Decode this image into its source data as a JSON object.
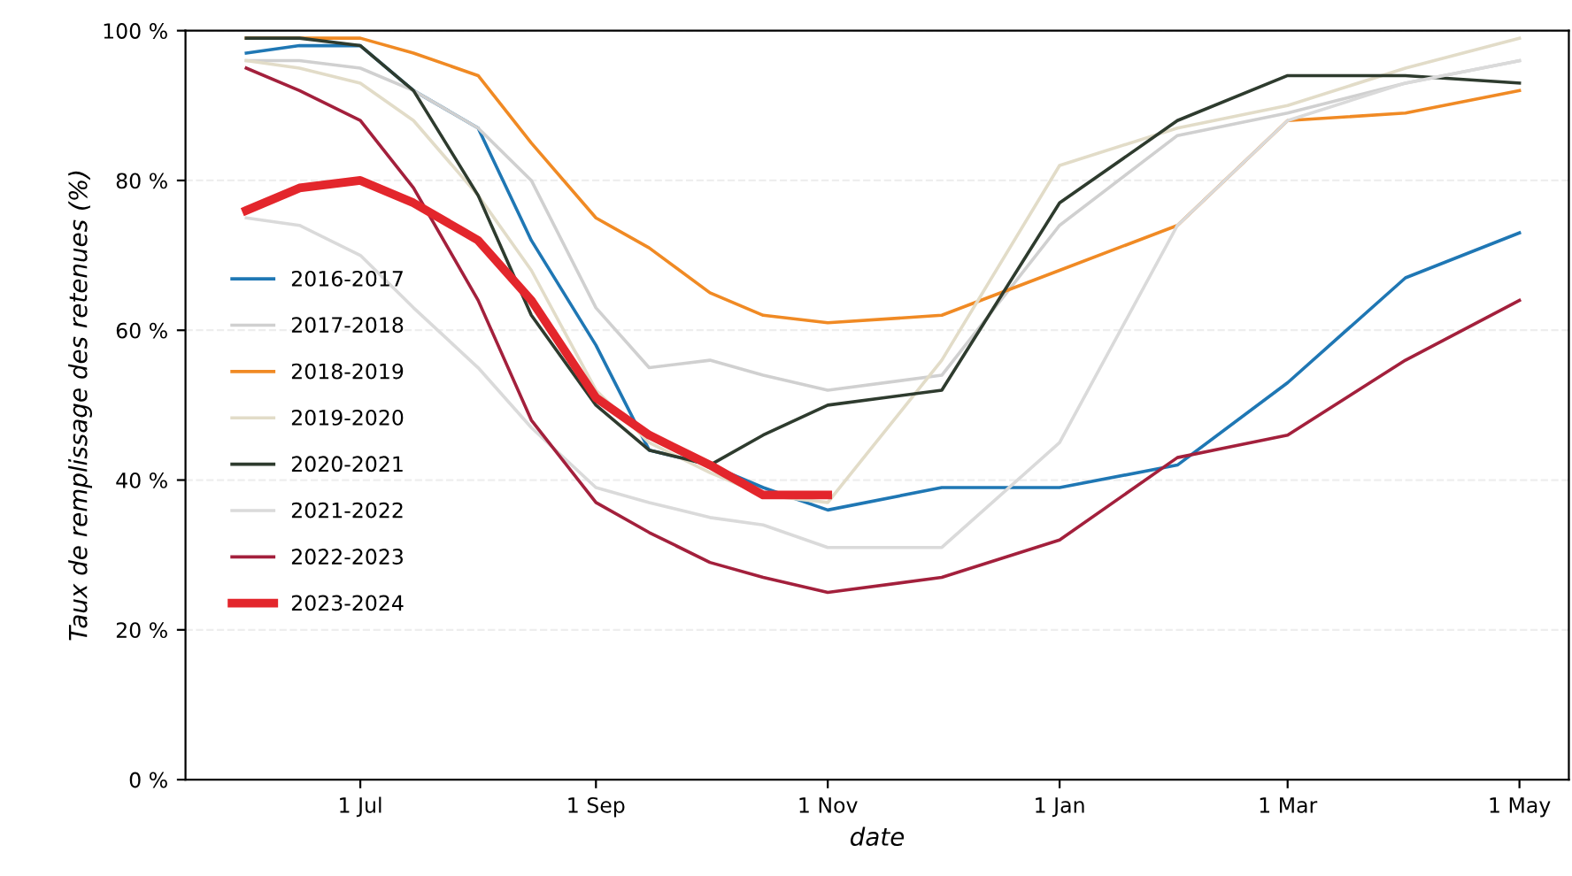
{
  "chart_data": {
    "type": "line",
    "xlabel": "date",
    "ylabel": "Taux de remplissage des retenues (%)",
    "x": [
      "2023-06-01",
      "2023-06-15",
      "2023-07-01",
      "2023-07-15",
      "2023-08-01",
      "2023-08-15",
      "2023-09-01",
      "2023-09-15",
      "2023-10-01",
      "2023-10-15",
      "2023-11-01",
      "2023-12-01",
      "2024-01-01",
      "2024-02-01",
      "2024-03-01",
      "2024-04-01",
      "2024-05-01"
    ],
    "xlim": [
      "2023-05-16",
      "2024-05-14"
    ],
    "xticks": [
      {
        "value": "2023-07-01",
        "label": "1 Jul"
      },
      {
        "value": "2023-09-01",
        "label": "1 Sep"
      },
      {
        "value": "2023-11-01",
        "label": "1 Nov"
      },
      {
        "value": "2024-01-01",
        "label": "1 Jan"
      },
      {
        "value": "2024-03-01",
        "label": "1 Mar"
      },
      {
        "value": "2024-05-01",
        "label": "1 May"
      }
    ],
    "ylim": [
      0,
      100
    ],
    "yticks": [
      {
        "value": 0,
        "label": "0 %"
      },
      {
        "value": 20,
        "label": "20 %"
      },
      {
        "value": 40,
        "label": "40 %"
      },
      {
        "value": 60,
        "label": "60 %"
      },
      {
        "value": 80,
        "label": "80 %"
      },
      {
        "value": 100,
        "label": "100 %"
      }
    ],
    "grid": "y",
    "legend": "left",
    "line_style": "solid",
    "series": [
      {
        "name": "2016-2017",
        "color": "#1f77b4",
        "values": [
          97,
          98,
          98,
          92,
          87,
          72,
          58,
          44,
          42,
          39,
          36,
          39,
          39,
          42,
          53,
          67,
          73
        ]
      },
      {
        "name": "2017-2018",
        "color": "#d0d0d0",
        "values": [
          96,
          96,
          95,
          92,
          87,
          80,
          63,
          55,
          56,
          54,
          52,
          54,
          74,
          86,
          89,
          93,
          96
        ]
      },
      {
        "name": "2018-2019",
        "color": "#f08a24",
        "values": [
          99,
          99,
          99,
          97,
          94,
          85,
          75,
          71,
          65,
          62,
          61,
          62,
          68,
          74,
          88,
          89,
          92
        ]
      },
      {
        "name": "2019-2020",
        "color": "#e2dcc8",
        "values": [
          96,
          95,
          93,
          88,
          78,
          68,
          52,
          45,
          41,
          38,
          37,
          56,
          82,
          87,
          90,
          95,
          99
        ]
      },
      {
        "name": "2020-2021",
        "color": "#2e3b2e",
        "values": [
          99,
          99,
          98,
          92,
          78,
          62,
          50,
          44,
          42,
          46,
          50,
          52,
          77,
          88,
          94,
          94,
          93
        ]
      },
      {
        "name": "2021-2022",
        "color": "#dadada",
        "values": [
          75,
          74,
          70,
          63,
          55,
          47,
          39,
          37,
          35,
          34,
          31,
          31,
          45,
          74,
          88,
          93,
          96
        ]
      },
      {
        "name": "2022-2023",
        "color": "#a3203c",
        "values": [
          95,
          92,
          88,
          79,
          64,
          48,
          37,
          33,
          29,
          27,
          25,
          27,
          32,
          43,
          46,
          56,
          64
        ]
      },
      {
        "name": "2023-2024",
        "color": "#e3262c",
        "values": [
          76,
          79,
          80,
          77,
          72,
          64,
          51,
          46,
          42,
          38,
          38,
          null,
          null,
          null,
          null,
          null,
          null
        ]
      }
    ]
  }
}
